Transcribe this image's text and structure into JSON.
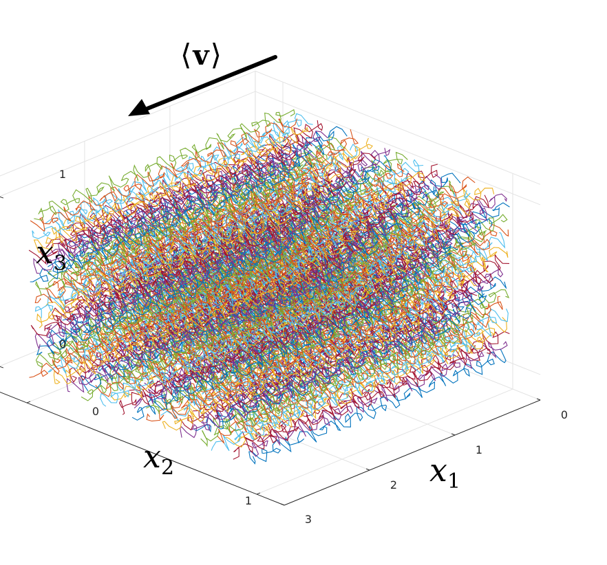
{
  "chart_data": {
    "type": "line",
    "projection": "3d-isometric",
    "title": "",
    "series_description_colors": [
      "#0072BD",
      "#D95319",
      "#EDB120",
      "#7E2F8E",
      "#77AC30",
      "#4DBEEE",
      "#A2142F"
    ],
    "axes": {
      "x1": {
        "label": "x",
        "subscript": "1",
        "range": [
          0,
          3
        ],
        "ticks": [
          "0",
          "1",
          "2",
          "3"
        ]
      },
      "x2": {
        "label": "x",
        "subscript": "2",
        "range": [
          0,
          1
        ],
        "ticks": [
          "0",
          "1"
        ]
      },
      "x3": {
        "label": "x",
        "subscript": "3",
        "range": [
          0,
          1
        ],
        "ticks": [
          "0",
          "1"
        ]
      }
    },
    "arrow": {
      "open_bracket": "⟨",
      "symbol": "v",
      "close_bracket": "⟩"
    },
    "grid": true,
    "trajectories": {
      "x1_span": [
        0,
        3
      ],
      "x2_levels": 14,
      "x3_levels": 16
    }
  }
}
